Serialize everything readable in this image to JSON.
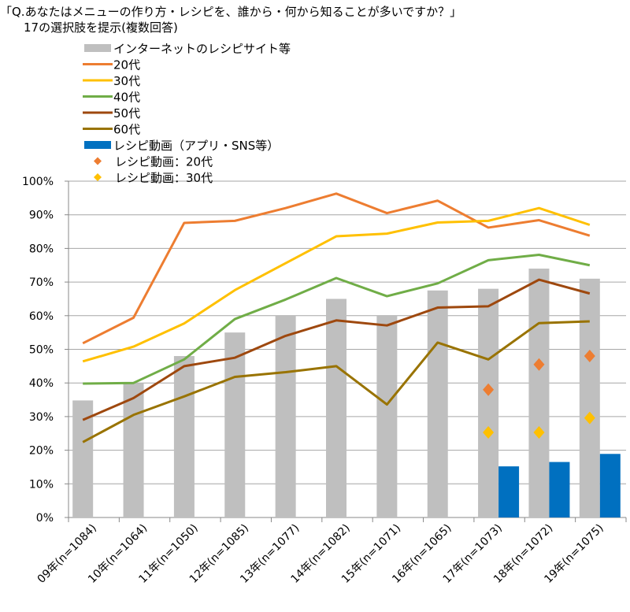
{
  "chart_data": {
    "type": "bar+line",
    "title": "「Q.あなたはメニューの作り方・レシピを、誰から・何から知ることが多いですか？」",
    "subtitle": "17の選択肢を提示(複数回答)",
    "categories": [
      "09年(n=1084)",
      "10年(n=1064)",
      "11年(n=1050)",
      "12年(n=1085)",
      "13年(n=1077)",
      "14年(n=1082)",
      "15年(n=1071)",
      "16年(n=1065)",
      "17年(n=1073)",
      "18年(n=1072)",
      "19年(n=1075)"
    ],
    "ylim": [
      0,
      100
    ],
    "yticks": [
      "0%",
      "10%",
      "20%",
      "30%",
      "40%",
      "50%",
      "60%",
      "70%",
      "80%",
      "90%",
      "100%"
    ],
    "grid": true,
    "legend_position": "top-left",
    "bars": [
      {
        "name": "インターネットのレシピサイト等",
        "color": "#bfbfbf",
        "values": [
          34.8,
          40,
          48,
          55,
          60,
          65,
          60,
          67.5,
          68,
          74,
          71
        ]
      },
      {
        "name": "レシピ動画（アプリ・SNS等）",
        "color": "#0070c0",
        "values": [
          null,
          null,
          null,
          null,
          null,
          null,
          null,
          null,
          15.2,
          16.5,
          18.9
        ]
      }
    ],
    "lines": [
      {
        "name": "20代",
        "color": "#ed7d31",
        "values": [
          51.8,
          59.4,
          87.6,
          88.2,
          92,
          96.3,
          90.5,
          94.2,
          86.2,
          88.4,
          83.8
        ]
      },
      {
        "name": "30代",
        "color": "#ffc000",
        "values": [
          46.4,
          50.8,
          57.7,
          67.6,
          75.6,
          83.6,
          84.4,
          87.7,
          88.2,
          92,
          87
        ]
      },
      {
        "name": "40代",
        "color": "#70ad47",
        "values": [
          39.8,
          40,
          47,
          59,
          64.8,
          71.2,
          65.8,
          69.6,
          76.5,
          78.1,
          75
        ]
      },
      {
        "name": "50代",
        "color": "#9e480e",
        "values": [
          29,
          35.5,
          45,
          47.5,
          54,
          58.6,
          57.1,
          62.4,
          62.8,
          70.7,
          66.6
        ]
      },
      {
        "name": "60代",
        "color": "#997300",
        "values": [
          22.4,
          30.5,
          36,
          41.8,
          43.2,
          45,
          33.6,
          52,
          47,
          57.8,
          58.3
        ]
      }
    ],
    "markers": [
      {
        "name": "レシピ動画：20代",
        "color": "#ed7d31",
        "values": [
          null,
          null,
          null,
          null,
          null,
          null,
          null,
          null,
          38,
          45.5,
          48
        ]
      },
      {
        "name": "レシピ動画：30代",
        "color": "#ffc000",
        "values": [
          null,
          null,
          null,
          null,
          null,
          null,
          null,
          null,
          25.3,
          25.3,
          29.6
        ]
      }
    ]
  }
}
